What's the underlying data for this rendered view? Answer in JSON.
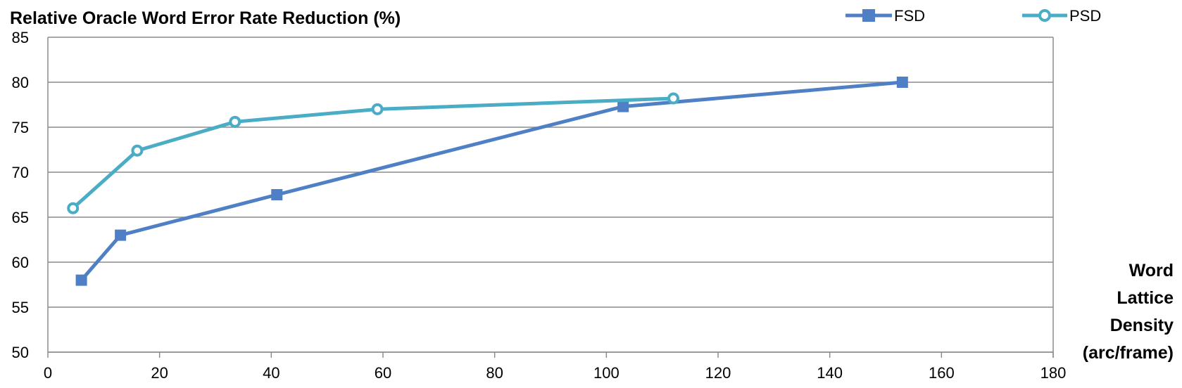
{
  "chart_data": {
    "type": "line",
    "title": "",
    "ylabel": "Relative Oracle Word Error Rate Reduction (%)",
    "xlabel": [
      "Word",
      "Lattice",
      "Density",
      "(arc/frame)"
    ],
    "xlim": [
      0,
      180
    ],
    "ylim": [
      50,
      85
    ],
    "xticks": [
      "0",
      "20",
      "40",
      "60",
      "80",
      "100",
      "120",
      "140",
      "160",
      "180"
    ],
    "yticks": [
      "50",
      "55",
      "60",
      "65",
      "70",
      "75",
      "80",
      "85"
    ],
    "grid": "horizontal",
    "legend_position": "top-right",
    "series": [
      {
        "name": "FSD",
        "color": "#4f7fc4",
        "marker": "square",
        "x": [
          6,
          13,
          41,
          103,
          153
        ],
        "y": [
          58,
          63,
          67.5,
          77.3,
          80
        ]
      },
      {
        "name": "PSD",
        "color": "#4bacc6",
        "marker": "circle-open",
        "x": [
          4.5,
          16,
          33.5,
          59,
          112
        ],
        "y": [
          66,
          72.4,
          75.6,
          77,
          78.2
        ]
      }
    ]
  }
}
